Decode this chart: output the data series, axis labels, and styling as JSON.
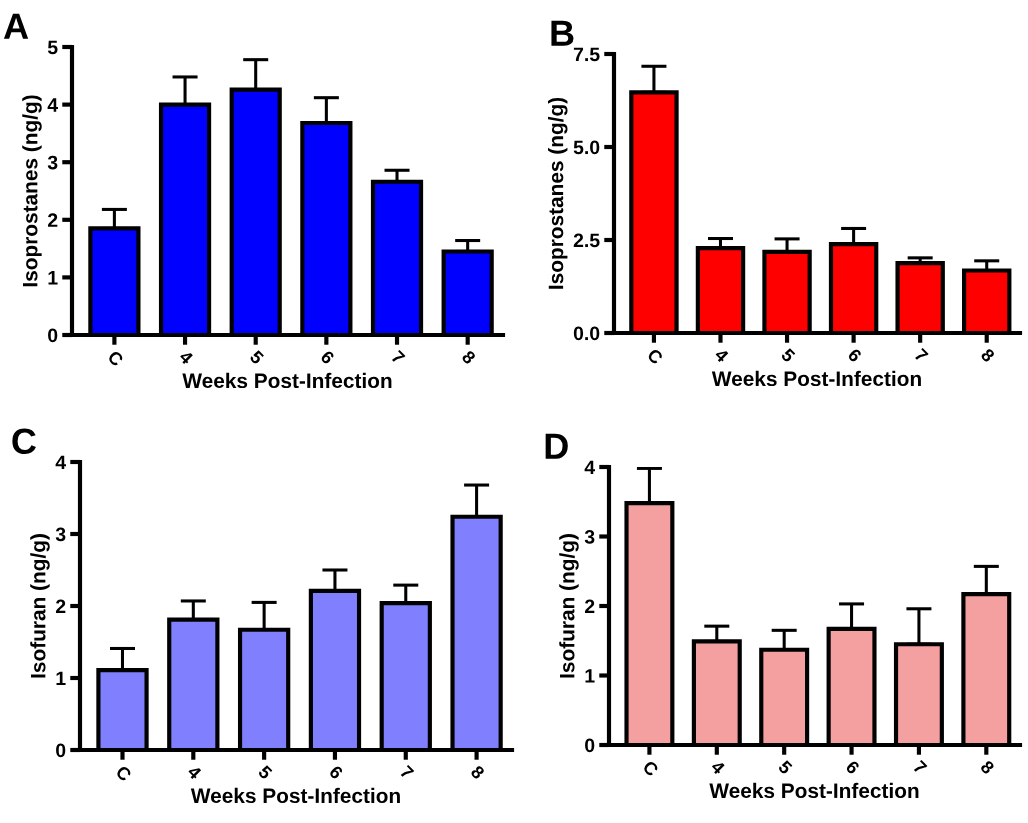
{
  "chart_data": [
    {
      "type": "bar",
      "title": "A",
      "xlabel": "Weeks Post-Infection",
      "ylabel": "Isoprostanes (ng/g)",
      "categories": [
        "C",
        "4",
        "5",
        "6",
        "7",
        "8"
      ],
      "color": "#0000ff",
      "values": [
        1.85,
        4.0,
        4.26,
        3.68,
        2.66,
        1.45
      ],
      "errors": [
        [
          1.85,
          2.18
        ],
        [
          4.0,
          4.48
        ],
        [
          4.26,
          4.78
        ],
        [
          3.68,
          4.12
        ],
        [
          2.66,
          2.86
        ],
        [
          1.45,
          1.64
        ]
      ],
      "ylim": [
        0,
        5
      ],
      "yticks": [
        0,
        1,
        2,
        3,
        4,
        5
      ],
      "grid": false
    },
    {
      "type": "bar",
      "title": "B",
      "xlabel": "Weeks Post-Infection",
      "ylabel": "Isoprostanes (ng/g)",
      "categories": [
        "C",
        "4",
        "5",
        "6",
        "7",
        "8"
      ],
      "color": "#ff0000",
      "values": [
        6.47,
        2.28,
        2.18,
        2.39,
        1.88,
        1.68
      ],
      "errors": [
        [
          6.47,
          7.17
        ],
        [
          2.28,
          2.54
        ],
        [
          2.18,
          2.53
        ],
        [
          2.39,
          2.81
        ],
        [
          1.88,
          2.02
        ],
        [
          1.68,
          1.94
        ]
      ],
      "ylim": [
        0,
        7.5
      ],
      "yticks": [
        {
          "value": 0,
          "label": "0.0"
        },
        {
          "value": 2.5,
          "label": "2.5"
        },
        {
          "value": 5,
          "label": "5.0"
        },
        {
          "value": 7.5,
          "label": "7.5"
        }
      ],
      "grid": false
    },
    {
      "type": "bar",
      "title": "C",
      "xlabel": "Weeks Post-Infection",
      "ylabel": "Isofuran (ng/g)",
      "categories": [
        "C",
        "4",
        "5",
        "6",
        "7",
        "8"
      ],
      "color": "#8080ff",
      "values": [
        1.11,
        1.81,
        1.67,
        2.21,
        2.04,
        3.24
      ],
      "errors": [
        [
          1.11,
          1.41
        ],
        [
          1.81,
          2.07
        ],
        [
          1.67,
          2.05
        ],
        [
          2.21,
          2.5
        ],
        [
          2.04,
          2.29
        ],
        [
          3.24,
          3.68
        ]
      ],
      "ylim": [
        0,
        4
      ],
      "yticks": [
        0,
        1,
        2,
        3,
        4
      ],
      "grid": false
    },
    {
      "type": "bar",
      "title": "D",
      "xlabel": "Weeks Post-Infection",
      "ylabel": "Isofuran (ng/g)",
      "categories": [
        "C",
        "4",
        "5",
        "6",
        "7",
        "8"
      ],
      "color": "#f4a0a0",
      "values": [
        3.48,
        1.49,
        1.37,
        1.67,
        1.45,
        2.17
      ],
      "errors": [
        [
          3.48,
          3.98
        ],
        [
          1.49,
          1.71
        ],
        [
          1.37,
          1.65
        ],
        [
          1.67,
          2.03
        ],
        [
          1.45,
          1.96
        ],
        [
          2.17,
          2.57
        ]
      ],
      "ylim": [
        0,
        4
      ],
      "yticks": [
        0,
        1,
        2,
        3,
        4
      ],
      "grid": false
    }
  ]
}
